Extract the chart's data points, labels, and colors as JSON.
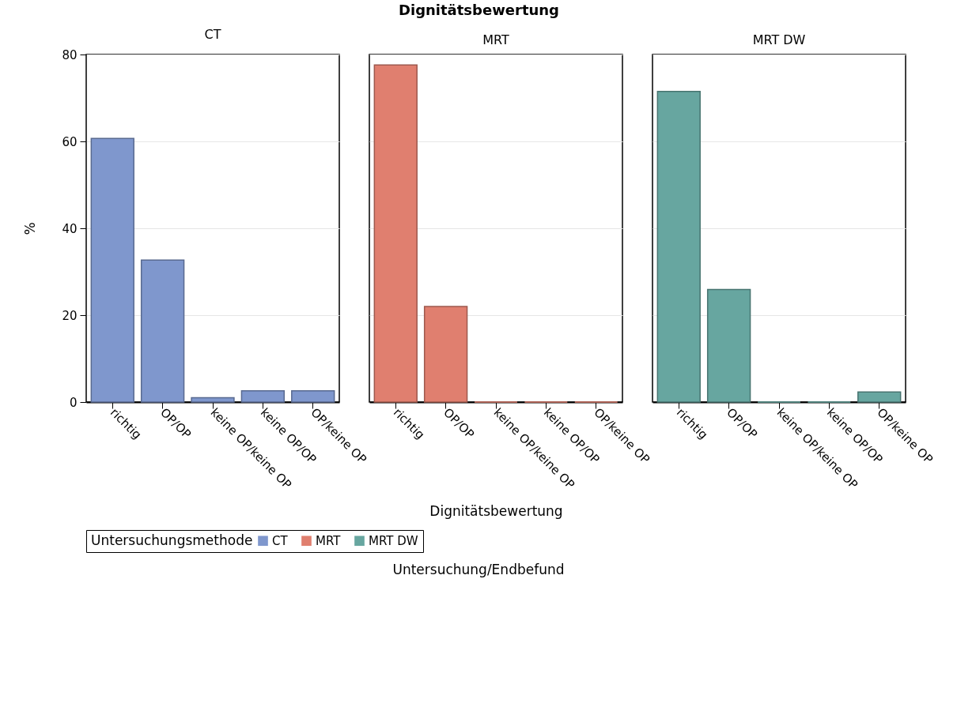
{
  "chart_data": [
    {
      "type": "bar",
      "subtitle": "CT",
      "ylabel": "%",
      "categories": [
        "richtig",
        "OP/OP",
        "keine OP/keine OP",
        "keine OP/OP",
        "OP/keine OP"
      ],
      "series": [
        {
          "name": "CT",
          "color": "#7f97cd",
          "values": [
            60.7,
            32.7,
            1.0,
            2.6,
            2.6
          ]
        }
      ],
      "ylim": [
        0,
        80
      ],
      "yticks": [
        0,
        20,
        40,
        60,
        80
      ],
      "grid": "y",
      "legend": "bottom",
      "legend_title": "Untersuchungsmethode"
    },
    {
      "type": "bar",
      "title": "Dignitätsbewertung",
      "subtitle": "MRT",
      "xlabel": "Dignitätsbewertung",
      "categories": [
        "richtig",
        "OP/OP",
        "keine OP/keine OP",
        "keine OP/OP",
        "OP/keine OP"
      ],
      "series": [
        {
          "name": "MRT",
          "color": "#e07f6f",
          "values": [
            77.6,
            22.0,
            0,
            0,
            0
          ]
        }
      ],
      "ylim": [
        0,
        80
      ],
      "yticks": [
        0,
        20,
        40,
        60,
        80
      ],
      "grid": "y",
      "legend": "bottom",
      "tick_labels": "x",
      "annotations": [
        "Untersuchung/Endbefund"
      ]
    },
    {
      "type": "bar",
      "subtitle": "MRT DW",
      "categories": [
        "richtig",
        "OP/OP",
        "keine OP/keine OP",
        "keine OP/OP",
        "OP/keine OP"
      ],
      "series": [
        {
          "name": "MRT DW",
          "color": "#67a6a0",
          "values": [
            71.5,
            25.9,
            0,
            0,
            2.3
          ]
        }
      ],
      "ylim": [
        0,
        80
      ],
      "yticks": [
        0,
        20,
        40,
        60,
        80
      ],
      "grid": "y",
      "legend": "bottom",
      "tick_labels": "x"
    }
  ]
}
